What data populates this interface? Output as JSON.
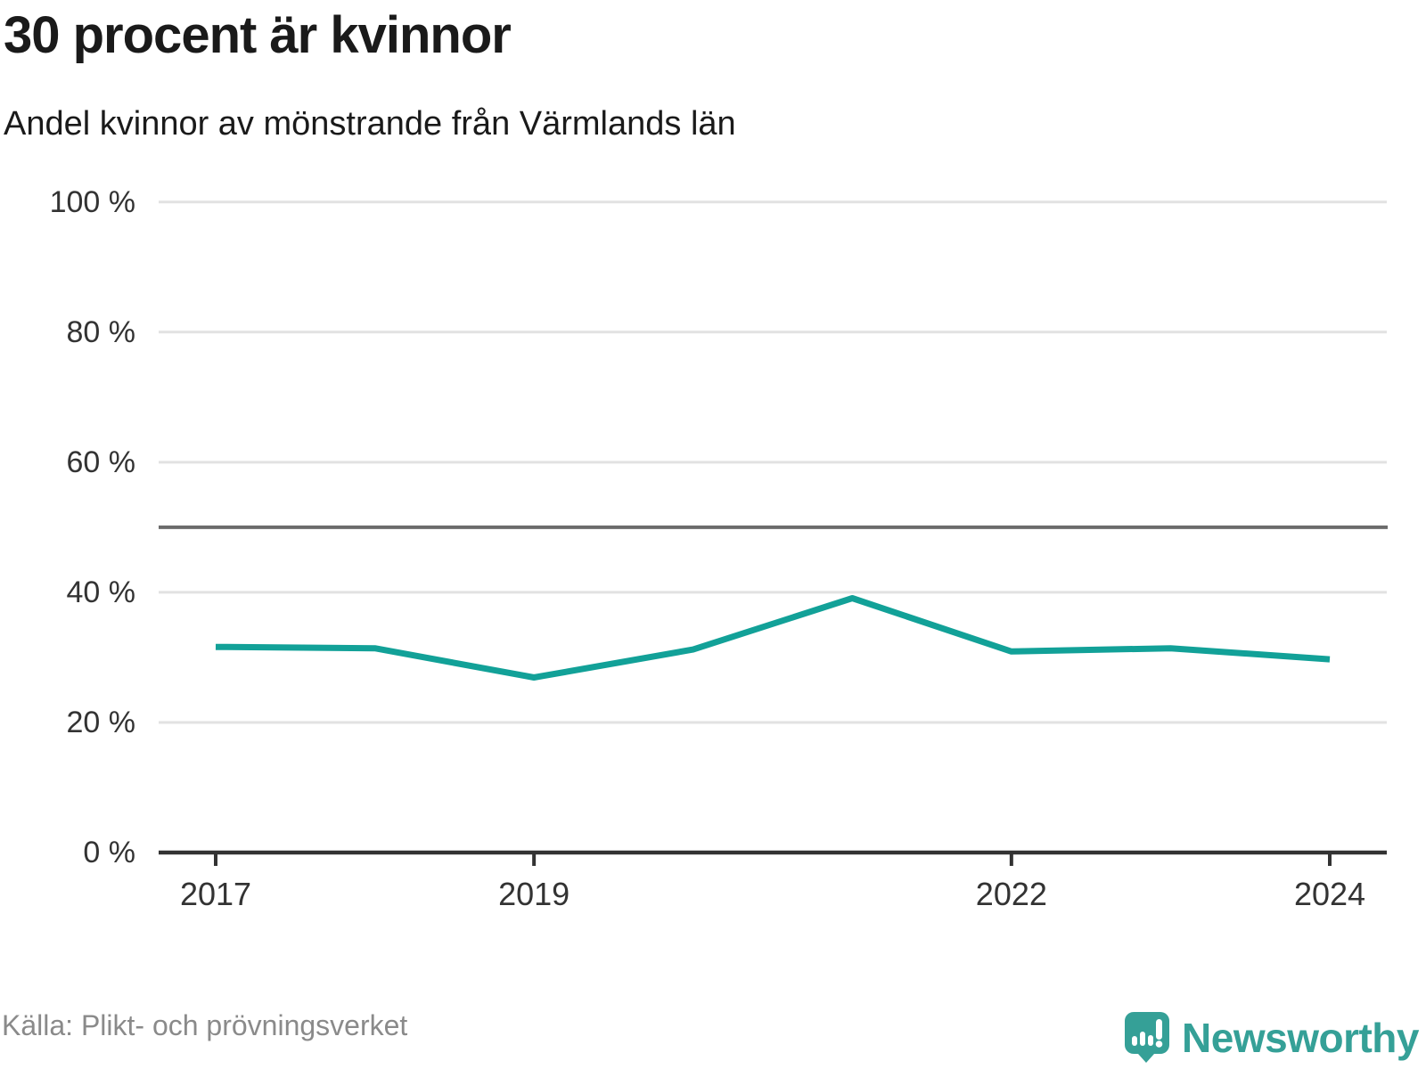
{
  "header": {
    "title": "30 procent är kvinnor",
    "subtitle": "Andel kvinnor av mönstrande från Värmlands län"
  },
  "footer": {
    "source": "Källa: Plikt- och prövningsverket",
    "brand": "Newsworthy"
  },
  "chart_data": {
    "type": "line",
    "title": "30 procent är kvinnor",
    "subtitle": "Andel kvinnor av mönstrande från Värmlands län",
    "x": [
      2017,
      2018,
      2019,
      2020,
      2021,
      2022,
      2023,
      2024
    ],
    "series": [
      {
        "name": "Andel kvinnor av mönstrande",
        "values": [
          31.6,
          31.4,
          26.9,
          31.2,
          39.1,
          30.9,
          31.4,
          29.7
        ]
      }
    ],
    "xticks": [
      2017,
      2019,
      2022,
      2024
    ],
    "yticks": [
      0,
      20,
      40,
      60,
      80,
      100
    ],
    "ytick_suffix": " %",
    "ylim": [
      0,
      100
    ],
    "reference_line": 50,
    "grid": true,
    "legend_position": "none",
    "colors": {
      "line": "#12a198",
      "reference": "#6b6b6b",
      "grid": "#e2e2e2",
      "axis": "#333333",
      "tick_text": "#333333"
    }
  }
}
